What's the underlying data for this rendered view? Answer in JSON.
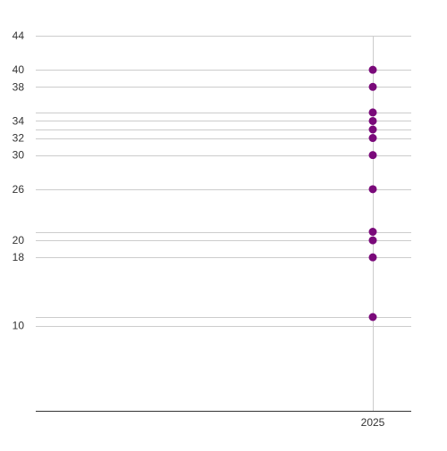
{
  "chart_data": {
    "type": "scatter",
    "title": "",
    "xlabel": "",
    "ylabel": "",
    "x_categories": [
      "2025"
    ],
    "y_ticks": [
      10,
      18,
      20,
      26,
      30,
      32,
      34,
      38,
      40,
      44
    ],
    "ylim": [
      0,
      44
    ],
    "series": [
      {
        "color": "#7a0a7a",
        "points": [
          {
            "x": "2025",
            "y": 40
          },
          {
            "x": "2025",
            "y": 38
          },
          {
            "x": "2025",
            "y": 35
          },
          {
            "x": "2025",
            "y": 34
          },
          {
            "x": "2025",
            "y": 33
          },
          {
            "x": "2025",
            "y": 32
          },
          {
            "x": "2025",
            "y": 30
          },
          {
            "x": "2025",
            "y": 26
          },
          {
            "x": "2025",
            "y": 21
          },
          {
            "x": "2025",
            "y": 20
          },
          {
            "x": "2025",
            "y": 18
          },
          {
            "x": "2025",
            "y": 11
          }
        ]
      }
    ],
    "grid": true,
    "legend": "none",
    "colors": {
      "gridline": "#cccccc",
      "axis": "#333333",
      "point": "#7a0a7a"
    }
  }
}
